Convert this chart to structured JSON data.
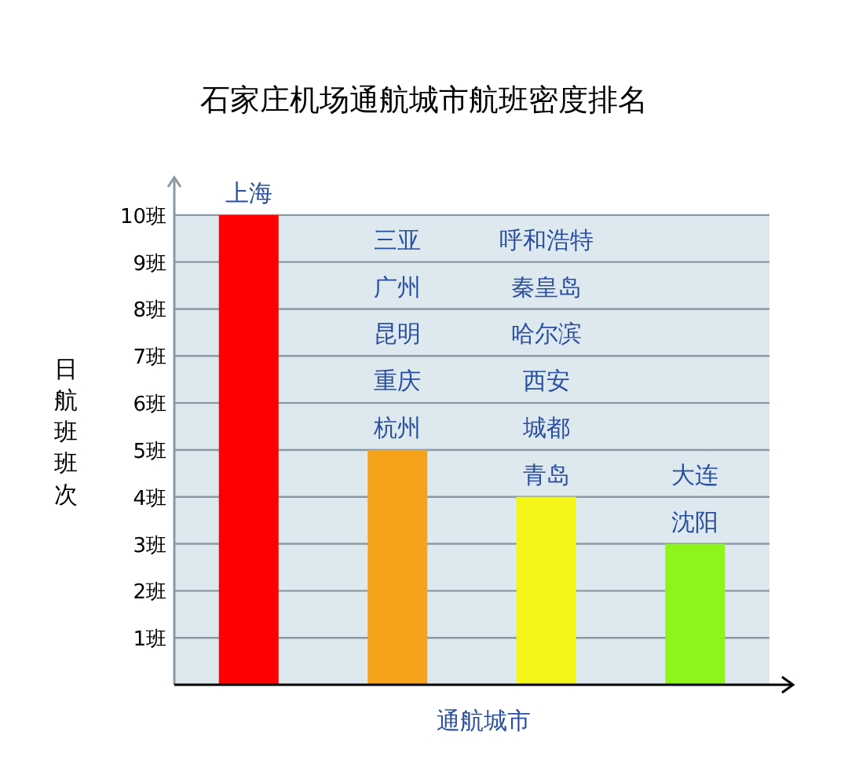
{
  "chart_data": {
    "type": "bar",
    "title": "石家庄机场通航城市航班密度排名",
    "xlabel": "通航城市",
    "ylabel": "日航班班次",
    "categories": [
      "上海",
      "杭州",
      "青岛",
      "沈阳"
    ],
    "values": [
      10,
      5,
      4,
      3
    ],
    "colors": [
      "#ff0000",
      "#f7a21b",
      "#f5f51a",
      "#8ef51a"
    ],
    "annotations": [
      "重庆",
      "昆明",
      "广州",
      "三亚",
      "城都",
      "西安",
      "哈尔滨",
      "秦皇岛",
      "呼和浩特",
      "大连"
    ],
    "ylim": [
      0,
      10.8
    ],
    "yticks": [
      {
        "value": 1,
        "label": "1班"
      },
      {
        "value": 2,
        "label": "2班"
      },
      {
        "value": 3,
        "label": "3班"
      },
      {
        "value": 4,
        "label": "4班"
      },
      {
        "value": 5,
        "label": "5班"
      },
      {
        "value": 6,
        "label": "6班"
      },
      {
        "value": 7,
        "label": "7班"
      },
      {
        "value": 8,
        "label": "8班"
      },
      {
        "value": 9,
        "label": "9班"
      },
      {
        "value": 10,
        "label": "10班"
      }
    ],
    "grid": "y"
  }
}
